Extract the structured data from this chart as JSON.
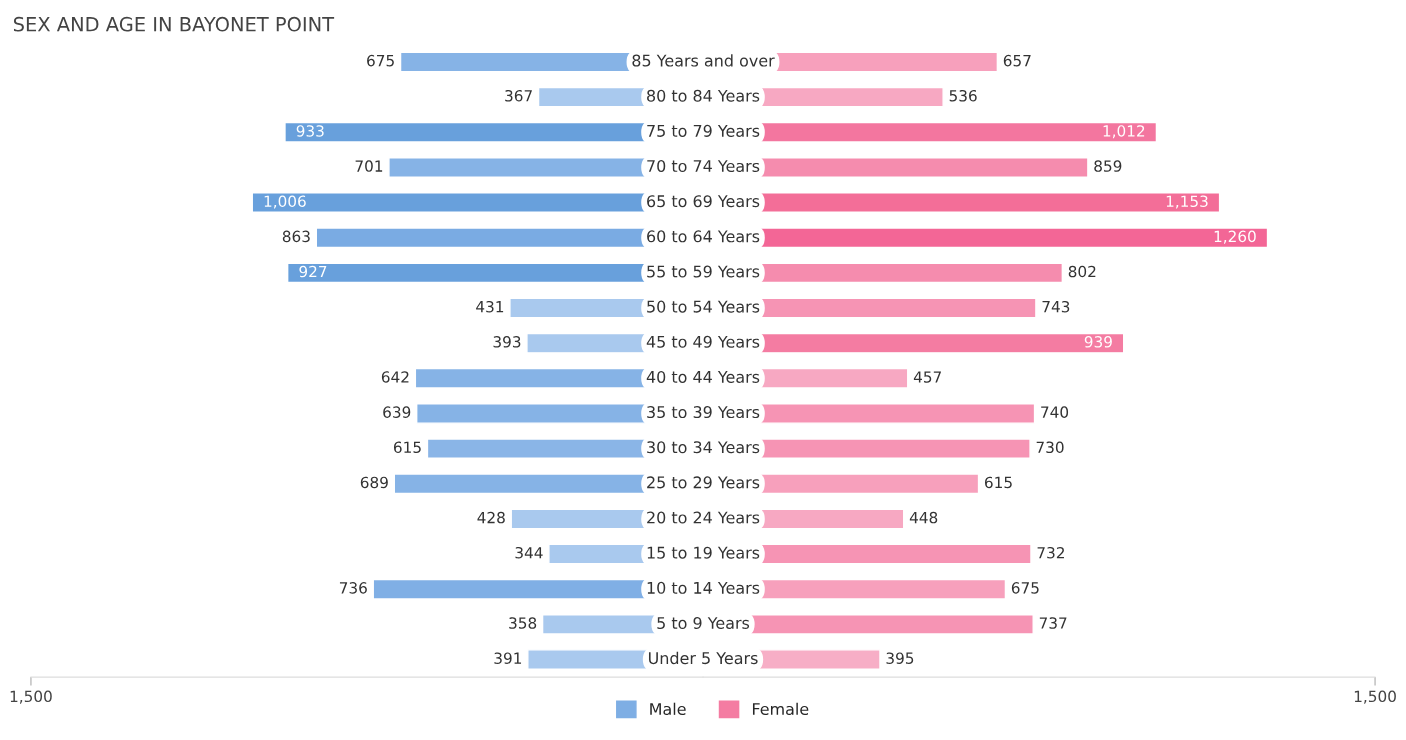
{
  "chart_data": [
    {
      "type": "bar",
      "orientation": "horizontal",
      "title": "SEX AND AGE IN BAYONET POINT",
      "categories": [
        "85 Years and over",
        "80 to 84 Years",
        "75 to 79 Years",
        "70 to 74 Years",
        "65 to 69 Years",
        "60 to 64 Years",
        "55 to 59 Years",
        "50 to 54 Years",
        "45 to 49 Years",
        "40 to 44 Years",
        "35 to 39 Years",
        "30 to 34 Years",
        "25 to 29 Years",
        "20 to 24 Years",
        "15 to 19 Years",
        "10 to 14 Years",
        "5 to 9 Years",
        "Under 5 Years"
      ],
      "series": [
        {
          "name": "Male",
          "color": "#7eaee4",
          "values": [
            675,
            367,
            933,
            701,
            1006,
            863,
            927,
            431,
            393,
            642,
            639,
            615,
            689,
            428,
            344,
            736,
            358,
            391
          ],
          "value_labels": [
            "675",
            "367",
            "933",
            "701",
            "1,006",
            "863",
            "927",
            "431",
            "393",
            "642",
            "639",
            "615",
            "689",
            "428",
            "344",
            "736",
            "358",
            "391"
          ],
          "colors": [
            "#86b3e6",
            "#a9c9ee",
            "#68a0dc",
            "#86b3e6",
            "#68a0dc",
            "#7aabe3",
            "#68a0dc",
            "#a9c9ee",
            "#a9c9ee",
            "#86b3e6",
            "#86b3e6",
            "#8ab5e7",
            "#86b3e6",
            "#a9c9ee",
            "#a9c9ee",
            "#80afe5",
            "#a9c9ee",
            "#a9c9ee"
          ]
        }
      ],
      "xlim": [
        1500,
        0
      ],
      "xticks": [
        {
          "value": 1500,
          "label": "1,500"
        }
      ],
      "legend": "bottom"
    },
    {
      "type": "bar",
      "orientation": "horizontal",
      "categories": [
        null,
        null,
        null,
        null,
        null,
        null,
        null,
        null,
        null,
        null,
        null,
        null,
        null,
        null,
        null,
        null,
        null,
        null
      ],
      "series": [
        {
          "name": "Female",
          "color": "#f47ca2",
          "values": [
            657,
            536,
            1012,
            859,
            1153,
            1260,
            802,
            743,
            939,
            457,
            740,
            730,
            615,
            448,
            732,
            675,
            737,
            395
          ],
          "value_labels": [
            "657",
            "536",
            "1,012",
            "859",
            "1,153",
            "1,260",
            "802",
            "743",
            "939",
            "457",
            "740",
            "730",
            "615",
            "448",
            "732",
            "675",
            "737",
            "395"
          ],
          "colors": [
            "#f7a0bc",
            "#f7a8c2",
            "#f3769f",
            "#f58cae",
            "#f36e98",
            "#f36696",
            "#f58cae",
            "#f694b4",
            "#f47ca2",
            "#f7a8c2",
            "#f694b4",
            "#f694b4",
            "#f7a0bc",
            "#f7a8c2",
            "#f694b4",
            "#f7a0bc",
            "#f694b4",
            "#f7aec6"
          ]
        }
      ],
      "xlim": [
        0,
        1500
      ],
      "xticks": [
        {
          "value": 1500,
          "label": "1,500"
        }
      ],
      "legend": "bottom"
    }
  ]
}
